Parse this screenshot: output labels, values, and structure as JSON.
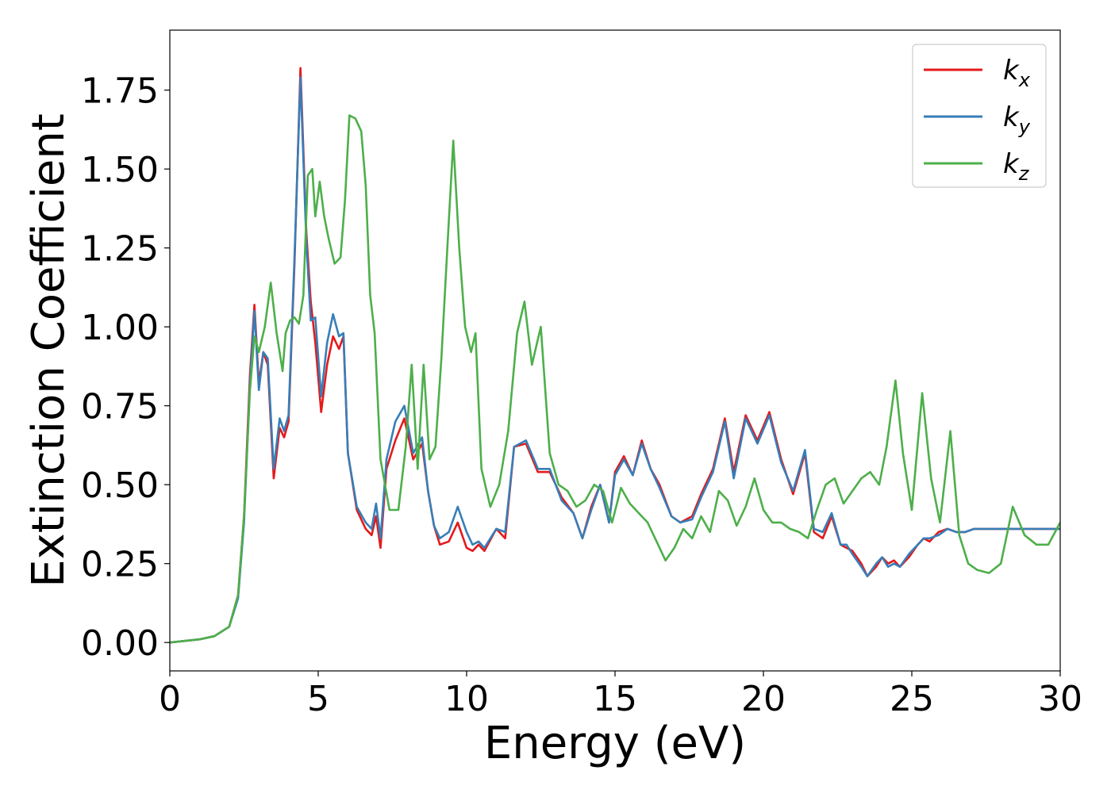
{
  "chart_data": {
    "type": "line",
    "title": "",
    "xlabel": "Energy (eV)",
    "ylabel": "Extinction Coefficient",
    "xlim": [
      0,
      30
    ],
    "ylim": [
      -0.09,
      1.94
    ],
    "xticks": [
      0,
      5,
      10,
      15,
      20,
      25,
      30
    ],
    "xtick_labels": [
      "0",
      "5",
      "10",
      "15",
      "20",
      "25",
      "30"
    ],
    "yticks": [
      0.0,
      0.25,
      0.5,
      0.75,
      1.0,
      1.25,
      1.5,
      1.75
    ],
    "ytick_labels": [
      "0.00",
      "0.25",
      "0.50",
      "0.75",
      "1.00",
      "1.25",
      "1.50",
      "1.75"
    ],
    "grid": false,
    "legend_position": "top-right",
    "series": [
      {
        "name": "k",
        "subscript": "x",
        "color": "#e41a1c",
        "x": [
          0,
          1,
          1.5,
          2,
          2.3,
          2.5,
          2.7,
          2.85,
          3.0,
          3.15,
          3.3,
          3.5,
          3.7,
          3.85,
          4.0,
          4.2,
          4.4,
          4.6,
          4.75,
          4.9,
          5.1,
          5.3,
          5.5,
          5.7,
          5.85,
          6.0,
          6.3,
          6.6,
          6.8,
          6.95,
          7.1,
          7.3,
          7.6,
          7.9,
          8.2,
          8.5,
          8.7,
          8.9,
          9.1,
          9.4,
          9.7,
          10.0,
          10.2,
          10.4,
          10.6,
          11.0,
          11.3,
          11.6,
          12.0,
          12.4,
          12.8,
          13.2,
          13.6,
          13.9,
          14.2,
          14.5,
          14.8,
          15.0,
          15.3,
          15.6,
          15.9,
          16.2,
          16.5,
          16.9,
          17.2,
          17.6,
          17.9,
          18.3,
          18.7,
          19.0,
          19.4,
          19.8,
          20.2,
          20.6,
          21.0,
          21.4,
          21.7,
          22.0,
          22.3,
          22.6,
          22.8,
          23.0,
          23.3,
          23.5,
          23.8,
          24.0,
          24.2,
          24.4,
          24.6,
          24.9,
          25.2,
          25.4,
          25.6,
          25.9,
          26.2,
          26.5,
          26.8,
          27.1,
          27.4,
          27.7,
          28.0,
          28.3,
          28.6,
          28.9,
          29.2,
          29.5,
          29.8,
          30
        ],
        "y": [
          0.0,
          0.01,
          0.02,
          0.05,
          0.15,
          0.4,
          0.85,
          1.07,
          0.82,
          0.92,
          0.88,
          0.52,
          0.68,
          0.65,
          0.7,
          1.2,
          1.82,
          1.3,
          1.08,
          0.95,
          0.73,
          0.88,
          0.97,
          0.93,
          0.97,
          0.6,
          0.42,
          0.36,
          0.34,
          0.4,
          0.3,
          0.55,
          0.64,
          0.71,
          0.58,
          0.63,
          0.48,
          0.37,
          0.31,
          0.32,
          0.38,
          0.3,
          0.29,
          0.31,
          0.29,
          0.36,
          0.33,
          0.62,
          0.63,
          0.54,
          0.54,
          0.46,
          0.41,
          0.33,
          0.43,
          0.5,
          0.38,
          0.54,
          0.59,
          0.53,
          0.64,
          0.55,
          0.5,
          0.4,
          0.38,
          0.4,
          0.47,
          0.55,
          0.71,
          0.54,
          0.72,
          0.64,
          0.73,
          0.58,
          0.47,
          0.6,
          0.35,
          0.33,
          0.4,
          0.31,
          0.3,
          0.29,
          0.25,
          0.21,
          0.24,
          0.27,
          0.25,
          0.26,
          0.24,
          0.27,
          0.31,
          0.33,
          0.32,
          0.35,
          0.36,
          0.35,
          0.35,
          0.36,
          0.36,
          0.36,
          0.36,
          0.36,
          0.36,
          0.36,
          0.36,
          0.36,
          0.36,
          0.36
        ]
      },
      {
        "name": "k",
        "subscript": "y",
        "color": "#377eb8",
        "x": [
          0,
          1,
          1.5,
          2,
          2.3,
          2.5,
          2.7,
          2.85,
          3.0,
          3.15,
          3.3,
          3.5,
          3.7,
          3.85,
          4.0,
          4.2,
          4.4,
          4.6,
          4.75,
          4.9,
          5.1,
          5.3,
          5.5,
          5.7,
          5.85,
          6.0,
          6.3,
          6.6,
          6.8,
          6.95,
          7.1,
          7.3,
          7.6,
          7.9,
          8.2,
          8.5,
          8.7,
          8.9,
          9.1,
          9.4,
          9.7,
          10.0,
          10.2,
          10.4,
          10.6,
          11.0,
          11.3,
          11.6,
          12.0,
          12.4,
          12.8,
          13.2,
          13.6,
          13.9,
          14.2,
          14.5,
          14.8,
          15.0,
          15.3,
          15.6,
          15.9,
          16.2,
          16.5,
          16.9,
          17.2,
          17.6,
          17.9,
          18.3,
          18.7,
          19.0,
          19.4,
          19.8,
          20.2,
          20.6,
          21.0,
          21.4,
          21.7,
          22.0,
          22.3,
          22.6,
          22.8,
          23.0,
          23.3,
          23.5,
          23.8,
          24.0,
          24.2,
          24.4,
          24.6,
          24.9,
          25.2,
          25.4,
          25.6,
          25.9,
          26.2,
          26.5,
          26.8,
          27.1,
          27.4,
          27.7,
          28.0,
          28.3,
          28.6,
          28.9,
          29.2,
          29.5,
          29.8,
          30
        ],
        "y": [
          0.0,
          0.01,
          0.02,
          0.05,
          0.14,
          0.38,
          0.82,
          1.05,
          0.8,
          0.92,
          0.9,
          0.55,
          0.71,
          0.67,
          0.72,
          1.22,
          1.79,
          1.27,
          1.02,
          1.03,
          0.78,
          0.95,
          1.04,
          0.97,
          0.98,
          0.6,
          0.43,
          0.38,
          0.36,
          0.44,
          0.33,
          0.58,
          0.7,
          0.75,
          0.6,
          0.65,
          0.48,
          0.37,
          0.33,
          0.35,
          0.43,
          0.35,
          0.31,
          0.32,
          0.3,
          0.36,
          0.35,
          0.62,
          0.64,
          0.55,
          0.55,
          0.45,
          0.41,
          0.33,
          0.42,
          0.5,
          0.38,
          0.53,
          0.58,
          0.53,
          0.63,
          0.55,
          0.49,
          0.4,
          0.38,
          0.39,
          0.46,
          0.54,
          0.7,
          0.52,
          0.71,
          0.63,
          0.72,
          0.57,
          0.48,
          0.61,
          0.36,
          0.35,
          0.41,
          0.31,
          0.31,
          0.28,
          0.24,
          0.21,
          0.25,
          0.27,
          0.24,
          0.25,
          0.24,
          0.28,
          0.31,
          0.33,
          0.33,
          0.34,
          0.36,
          0.35,
          0.35,
          0.36,
          0.36,
          0.36,
          0.36,
          0.36,
          0.36,
          0.36,
          0.36,
          0.36,
          0.36,
          0.36
        ]
      },
      {
        "name": "k",
        "subscript": "z",
        "color": "#4daf4a",
        "x": [
          0,
          1,
          1.5,
          2,
          2.3,
          2.5,
          2.7,
          2.85,
          3.0,
          3.2,
          3.4,
          3.6,
          3.8,
          3.9,
          4.05,
          4.2,
          4.35,
          4.5,
          4.65,
          4.8,
          4.9,
          5.05,
          5.2,
          5.35,
          5.55,
          5.75,
          5.9,
          6.05,
          6.25,
          6.45,
          6.6,
          6.75,
          6.9,
          7.1,
          7.4,
          7.7,
          7.95,
          8.15,
          8.35,
          8.55,
          8.75,
          8.95,
          9.15,
          9.35,
          9.55,
          9.75,
          9.95,
          10.15,
          10.3,
          10.5,
          10.8,
          11.1,
          11.4,
          11.7,
          11.95,
          12.2,
          12.5,
          12.8,
          13.1,
          13.4,
          13.7,
          14.0,
          14.3,
          14.6,
          14.9,
          15.2,
          15.5,
          15.8,
          16.1,
          16.4,
          16.7,
          17.0,
          17.3,
          17.6,
          17.9,
          18.2,
          18.5,
          18.8,
          19.1,
          19.4,
          19.7,
          20.0,
          20.3,
          20.6,
          20.9,
          21.2,
          21.5,
          21.8,
          22.1,
          22.4,
          22.7,
          23.0,
          23.3,
          23.6,
          23.9,
          24.15,
          24.45,
          24.7,
          25.0,
          25.35,
          25.65,
          25.95,
          26.3,
          26.6,
          26.9,
          27.2,
          27.6,
          28.0,
          28.4,
          28.8,
          29.2,
          29.6,
          30
        ],
        "y": [
          0.0,
          0.01,
          0.02,
          0.05,
          0.15,
          0.4,
          0.8,
          0.97,
          0.92,
          1.0,
          1.14,
          0.98,
          0.86,
          0.98,
          1.02,
          1.03,
          1.01,
          1.1,
          1.48,
          1.5,
          1.35,
          1.46,
          1.35,
          1.28,
          1.2,
          1.22,
          1.4,
          1.67,
          1.66,
          1.62,
          1.45,
          1.1,
          0.98,
          0.58,
          0.42,
          0.42,
          0.62,
          0.88,
          0.55,
          0.88,
          0.58,
          0.62,
          0.9,
          1.25,
          1.59,
          1.25,
          1.0,
          0.92,
          0.98,
          0.55,
          0.43,
          0.5,
          0.67,
          0.98,
          1.08,
          0.88,
          1.0,
          0.6,
          0.5,
          0.48,
          0.43,
          0.45,
          0.5,
          0.48,
          0.38,
          0.49,
          0.44,
          0.41,
          0.38,
          0.32,
          0.26,
          0.3,
          0.36,
          0.33,
          0.4,
          0.35,
          0.48,
          0.45,
          0.37,
          0.43,
          0.52,
          0.42,
          0.38,
          0.38,
          0.36,
          0.35,
          0.33,
          0.42,
          0.5,
          0.52,
          0.44,
          0.48,
          0.52,
          0.54,
          0.5,
          0.62,
          0.83,
          0.6,
          0.42,
          0.79,
          0.52,
          0.38,
          0.67,
          0.34,
          0.25,
          0.23,
          0.22,
          0.25,
          0.43,
          0.34,
          0.31,
          0.31,
          0.38
        ]
      }
    ]
  }
}
